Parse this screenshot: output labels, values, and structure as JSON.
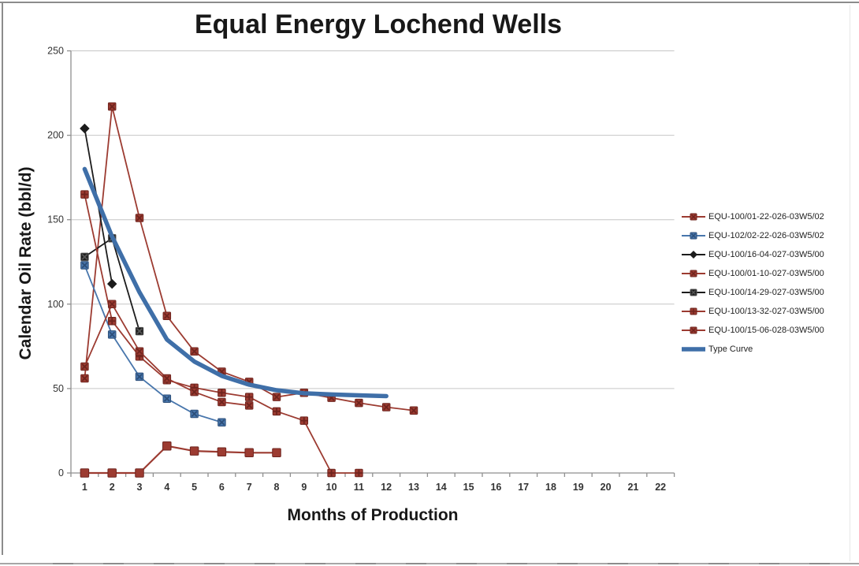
{
  "chart_data": {
    "type": "line",
    "title": "Equal Energy Lochend Wells",
    "xlabel": "Months of Production",
    "ylabel": "Calendar Oil Rate (bbl/d)",
    "x_ticks": [
      1,
      2,
      3,
      4,
      5,
      6,
      7,
      8,
      9,
      10,
      11,
      12,
      13,
      14,
      15,
      16,
      17,
      18,
      19,
      20,
      21,
      22
    ],
    "y_ticks": [
      0,
      50,
      100,
      150,
      200,
      250
    ],
    "ylim": [
      0,
      250
    ],
    "grid": "horizontal",
    "legend_position": "right",
    "colors": {
      "dark_red": "#9c3b31",
      "dark_red_accent": "#6e241e",
      "blue": "#4876ac",
      "blue_accent": "#2c4e78",
      "type_curve_blue": "#3f6fa8",
      "black": "#1c1c1c",
      "gridline": "#c6c6c6",
      "axis": "#8f8f8f",
      "tick_text": "#333333"
    },
    "series": [
      {
        "name": "EQU-100/01-22-026-03W5/02",
        "color": "#9c3b31",
        "accent": "#6e241e",
        "marker": "x",
        "width": 1.8,
        "x": [
          1,
          2,
          3,
          4,
          5,
          6,
          7,
          8,
          9,
          10,
          11,
          12,
          13
        ],
        "values": [
          56,
          217,
          151,
          93,
          72,
          60,
          54,
          45,
          47.5,
          44.5,
          41.5,
          39,
          37
        ]
      },
      {
        "name": "EQU-102/02-22-026-03W5/02",
        "color": "#4876ac",
        "accent": "#2c4e78",
        "marker": "x",
        "width": 1.8,
        "x": [
          1,
          2,
          3,
          4,
          5,
          6
        ],
        "values": [
          123,
          82,
          57,
          44,
          35,
          30
        ]
      },
      {
        "name": "EQU-100/16-04-027-03W5/00",
        "color": "#1c1c1c",
        "accent": "#000000",
        "marker": "diamond",
        "width": 1.8,
        "x": [
          1,
          2
        ],
        "values": [
          204,
          112
        ]
      },
      {
        "name": "EQU-100/01-10-027-03W5/00",
        "color": "#9c3b31",
        "accent": "#6e241e",
        "marker": "square",
        "width": 2.2,
        "x": [
          1,
          2,
          3,
          4,
          5,
          6,
          7,
          8
        ],
        "values": [
          0,
          0,
          0,
          16,
          13,
          12.5,
          12,
          12
        ]
      },
      {
        "name": "EQU-100/14-29-027-03W5/00",
        "color": "#1c1c1c",
        "accent": "#555555",
        "marker": "square-x",
        "width": 1.8,
        "x": [
          1,
          2,
          3
        ],
        "values": [
          128,
          139,
          84
        ]
      },
      {
        "name": "EQU-100/13-32-027-03W5/00",
        "color": "#9c3b31",
        "accent": "#6e241e",
        "marker": "plus-square",
        "width": 1.8,
        "x": [
          1,
          2,
          3,
          4,
          5,
          6,
          7,
          8,
          9,
          10,
          11
        ],
        "values": [
          165,
          90,
          69,
          55,
          50.5,
          47.5,
          45,
          36.5,
          31,
          0,
          0
        ]
      },
      {
        "name": "EQU-100/15-06-028-03W5/00",
        "color": "#9c3b31",
        "accent": "#6e241e",
        "marker": "x-square",
        "width": 1.8,
        "x": [
          1,
          2,
          3,
          4,
          5,
          6,
          7
        ],
        "values": [
          63,
          100,
          72,
          56,
          48,
          42,
          40
        ]
      },
      {
        "name": "Type Curve",
        "color": "#3f6fa8",
        "accent": "#3f6fa8",
        "marker": "none",
        "width": 5.5,
        "x": [
          1,
          2,
          3,
          4,
          5,
          6,
          7,
          8,
          9,
          10,
          11,
          12
        ],
        "values": [
          180,
          140,
          107,
          79,
          66,
          57.5,
          52.3,
          49,
          47.2,
          46.5,
          46,
          45.5
        ]
      }
    ]
  }
}
